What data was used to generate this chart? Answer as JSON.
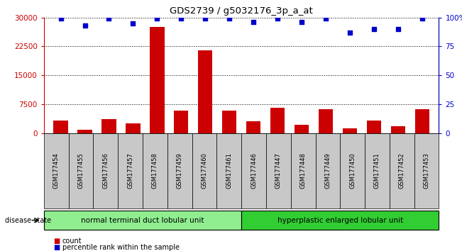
{
  "title": "GDS2739 / g5032176_3p_a_at",
  "samples": [
    "GSM177454",
    "GSM177455",
    "GSM177456",
    "GSM177457",
    "GSM177458",
    "GSM177459",
    "GSM177460",
    "GSM177461",
    "GSM177446",
    "GSM177447",
    "GSM177448",
    "GSM177449",
    "GSM177450",
    "GSM177451",
    "GSM177452",
    "GSM177453"
  ],
  "counts": [
    3200,
    900,
    3700,
    2500,
    27500,
    5800,
    21500,
    5800,
    3000,
    6500,
    2200,
    6200,
    1200,
    3200,
    1800,
    6200
  ],
  "percentiles": [
    99,
    93,
    99,
    95,
    99,
    99,
    99,
    99,
    96,
    99,
    96,
    99,
    87,
    90,
    90,
    99
  ],
  "group1_label": "normal terminal duct lobular unit",
  "group2_label": "hyperplastic enlarged lobular unit",
  "group1_count": 8,
  "group2_count": 8,
  "bar_color": "#cc0000",
  "dot_color": "#0000cc",
  "bar_width": 0.6,
  "ylim_left": [
    0,
    30000
  ],
  "yticks_left": [
    0,
    7500,
    15000,
    22500,
    30000
  ],
  "ylim_right": [
    0,
    100
  ],
  "yticks_right": [
    0,
    25,
    50,
    75,
    100
  ],
  "group1_color": "#90ee90",
  "group2_color": "#32cd32",
  "background_color": "#ffffff",
  "tick_label_bg": "#c8c8c8"
}
